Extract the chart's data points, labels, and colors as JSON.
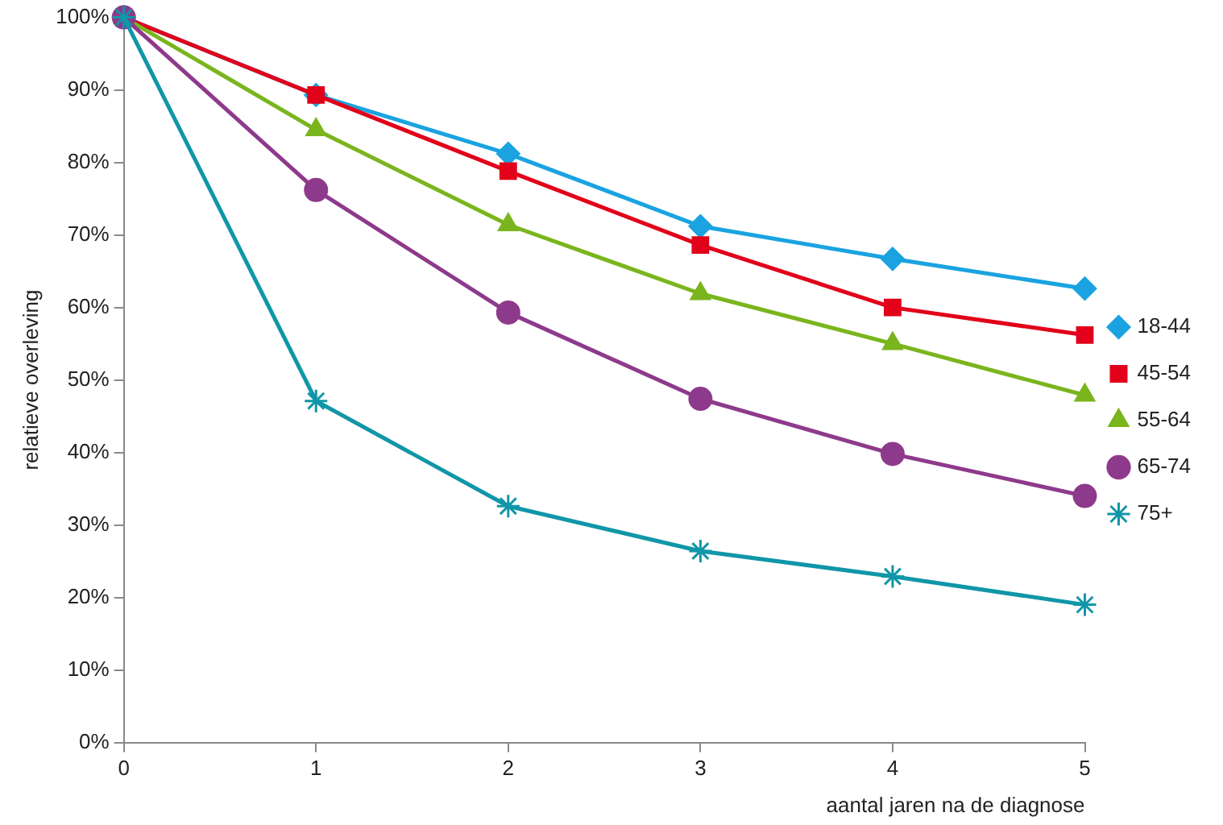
{
  "chart_data": {
    "type": "line",
    "xlabel": "aantal jaren na de diagnose",
    "ylabel": "relatieve overleving",
    "x": [
      0,
      1,
      2,
      3,
      4,
      5
    ],
    "xlim": [
      0,
      5
    ],
    "xticks": [
      0,
      1,
      2,
      3,
      4,
      5
    ],
    "ylim": [
      0,
      100
    ],
    "yticks": [
      {
        "value": 0,
        "label": "0%"
      },
      {
        "value": 10,
        "label": "10%"
      },
      {
        "value": 20,
        "label": "20%"
      },
      {
        "value": 30,
        "label": "30%"
      },
      {
        "value": 40,
        "label": "40%"
      },
      {
        "value": 50,
        "label": "50%"
      },
      {
        "value": 60,
        "label": "60%"
      },
      {
        "value": 70,
        "label": "70%"
      },
      {
        "value": 80,
        "label": "80%"
      },
      {
        "value": 90,
        "label": "90%"
      },
      {
        "value": 100,
        "label": "100%"
      }
    ],
    "grid": false,
    "legend": "right",
    "line_style": "solid",
    "series": [
      {
        "name": "18-44",
        "color": "#1aa3e0",
        "marker": "diamond",
        "values": [
          100,
          89.3,
          81.2,
          71.2,
          66.7,
          62.6
        ]
      },
      {
        "name": "45-54",
        "color": "#e2001a",
        "marker": "square",
        "values": [
          100,
          89.3,
          78.8,
          68.6,
          60.0,
          56.2
        ]
      },
      {
        "name": "55-64",
        "color": "#7ab51d",
        "marker": "triangle",
        "values": [
          100,
          84.5,
          71.4,
          61.9,
          55.0,
          47.9
        ]
      },
      {
        "name": "65-74",
        "color": "#8e3a8c",
        "marker": "circle",
        "values": [
          100,
          76.2,
          59.3,
          47.4,
          39.8,
          34.0
        ]
      },
      {
        "name": "75+",
        "color": "#1096a8",
        "marker": "cross",
        "values": [
          100,
          47.1,
          32.6,
          26.4,
          22.9,
          19.0
        ]
      }
    ]
  }
}
